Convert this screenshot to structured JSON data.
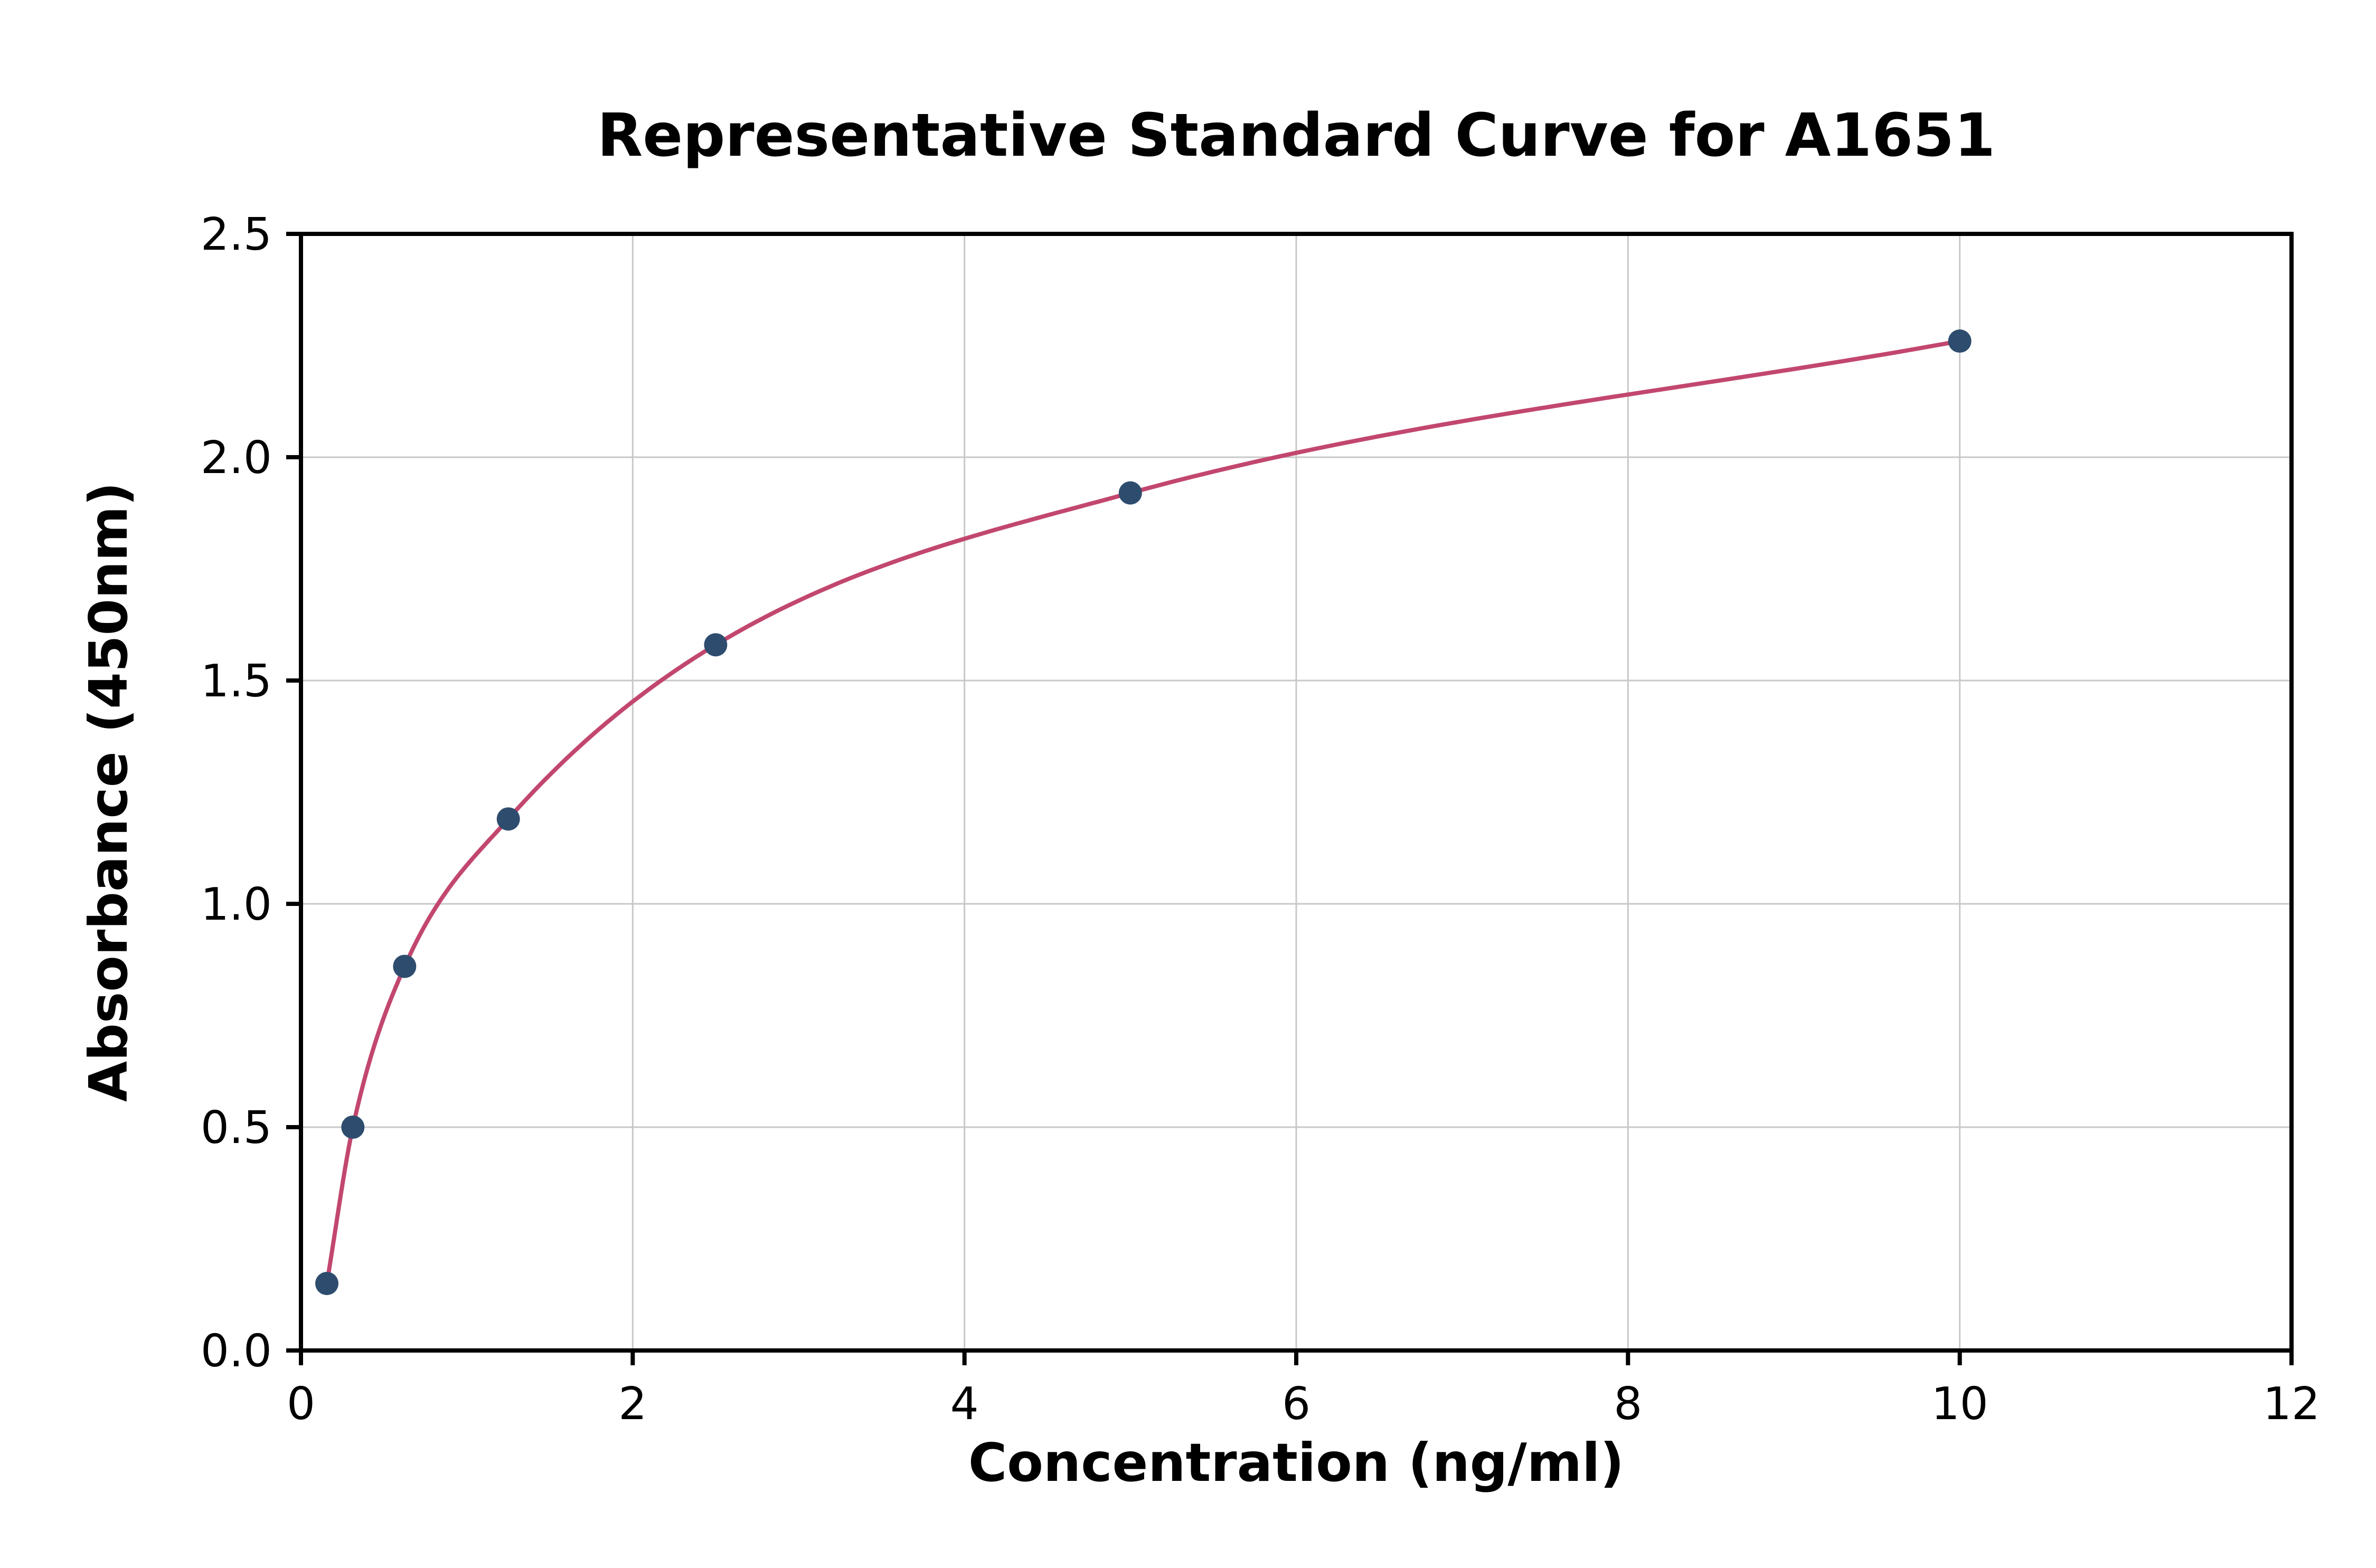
{
  "chart_data": {
    "type": "scatter",
    "title": "Representative Standard Curve for A1651",
    "xlabel": "Concentration (ng/ml)",
    "ylabel": "Absorbance (450nm)",
    "xlim": [
      0,
      12
    ],
    "ylim": [
      0,
      2.5
    ],
    "x_ticks": [
      0,
      2,
      4,
      6,
      8,
      10,
      12
    ],
    "x_tick_labels": [
      "0",
      "2",
      "4",
      "6",
      "8",
      "10",
      "12"
    ],
    "y_ticks": [
      0.0,
      0.5,
      1.0,
      1.5,
      2.0,
      2.5
    ],
    "y_tick_labels": [
      "0.0",
      "0.5",
      "1.0",
      "1.5",
      "2.0",
      "2.5"
    ],
    "grid": true,
    "points": {
      "x": [
        0.156,
        0.313,
        0.625,
        1.25,
        2.5,
        5,
        10
      ],
      "y": [
        0.15,
        0.5,
        0.86,
        1.19,
        1.58,
        1.92,
        2.26
      ]
    },
    "fit": "smooth curve through all points (4PL-style saturation curve)",
    "colors": {
      "curve": "#c2476e",
      "points": "#2e4d6e",
      "grid": "#c8c8c8",
      "frame": "#000000",
      "background": "#ffffff"
    }
  }
}
